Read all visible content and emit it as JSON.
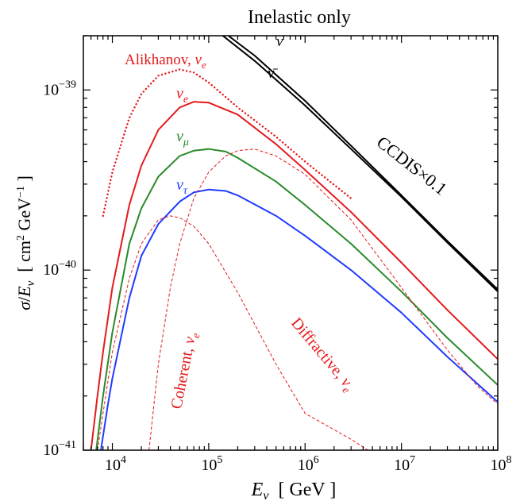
{
  "chart_data": {
    "type": "line",
    "title": "Inelastic only",
    "xlabel": "E_ν  [ GeV ]",
    "ylabel": "σ/E_ν  [ cm² GeV⁻¹ ]",
    "xscale": "log",
    "yscale": "log",
    "xlim": [
      5000,
      100000000
    ],
    "ylim": [
      1e-41,
      2e-39
    ],
    "x_ticks": [
      {
        "value": 10000,
        "base": "10",
        "exp": "4"
      },
      {
        "value": 100000,
        "base": "10",
        "exp": "5"
      },
      {
        "value": 1000000,
        "base": "10",
        "exp": "6"
      },
      {
        "value": 10000000,
        "base": "10",
        "exp": "7"
      },
      {
        "value": 100000000,
        "base": "10",
        "exp": "8"
      }
    ],
    "y_ticks": [
      {
        "value": 1e-41,
        "base": "10",
        "exp": "−41"
      },
      {
        "value": 1e-40,
        "base": "10",
        "exp": "−40"
      },
      {
        "value": 1e-39,
        "base": "10",
        "exp": "−39"
      }
    ],
    "grid": false,
    "series": [
      {
        "name": "CCDIS×0.1 (ν)",
        "color": "#000000",
        "dash": "solid",
        "x": [
          160000,
          300000,
          1000000,
          3000000,
          10000000,
          30000000,
          100000000
        ],
        "y": [
          2e-39,
          1.55e-39,
          8.7e-40,
          4.9e-40,
          2.6e-40,
          1.45e-40,
          7.8e-41
        ]
      },
      {
        "name": "CCDIS×0.1 (ν̄)",
        "color": "#000000",
        "dash": "solid",
        "x": [
          140000,
          300000,
          1000000,
          3000000,
          10000000,
          30000000,
          100000000
        ],
        "y": [
          2e-39,
          1.45e-39,
          8.2e-40,
          4.7e-40,
          2.55e-40,
          1.42e-40,
          7.6e-41
        ]
      },
      {
        "name": "Alikhanov, ν_e",
        "color": "#e41a1c",
        "dash": "dotted",
        "x": [
          8000,
          10000,
          15000,
          20000,
          30000,
          50000,
          70000,
          100000,
          200000,
          500000,
          1000000,
          3000000
        ],
        "y": [
          2e-40,
          3.5e-40,
          7e-40,
          9.5e-40,
          1.2e-39,
          1.3e-39,
          1.25e-39,
          1.1e-39,
          8e-40,
          5.5e-40,
          4e-40,
          2.5e-40
        ]
      },
      {
        "name": "ν_e",
        "color": "#e41a1c",
        "dash": "solid",
        "x": [
          6000,
          7000,
          8000,
          10000,
          15000,
          20000,
          30000,
          50000,
          70000,
          100000,
          200000,
          500000,
          1000000,
          3000000,
          10000000,
          30000000,
          100000000
        ],
        "y": [
          1e-41,
          2e-41,
          3.5e-41,
          8e-41,
          2.3e-40,
          3.8e-40,
          6e-40,
          8e-40,
          8.6e-40,
          8.5e-40,
          7.3e-40,
          5e-40,
          3.6e-40,
          2.1e-40,
          1.1e-40,
          6e-41,
          3.2e-41
        ]
      },
      {
        "name": "ν_μ",
        "color": "#2a8a2a",
        "dash": "solid",
        "x": [
          6800,
          8000,
          10000,
          15000,
          20000,
          30000,
          50000,
          70000,
          100000,
          150000,
          200000,
          500000,
          1000000,
          3000000,
          10000000,
          30000000,
          100000000
        ],
        "y": [
          1e-41,
          2e-41,
          4.5e-41,
          1.4e-40,
          2.2e-40,
          3.3e-40,
          4.3e-40,
          4.6e-40,
          4.7e-40,
          4.55e-40,
          4.2e-40,
          3.1e-40,
          2.3e-40,
          1.4e-40,
          7.6e-41,
          4.2e-41,
          2.3e-41
        ]
      },
      {
        "name": "ν_τ",
        "color": "#1f3cff",
        "dash": "solid",
        "x": [
          7600,
          9000,
          10000,
          15000,
          20000,
          30000,
          50000,
          70000,
          100000,
          150000,
          200000,
          500000,
          1000000,
          3000000,
          10000000,
          30000000,
          100000000
        ],
        "y": [
          1e-41,
          1.8e-41,
          2.5e-41,
          7e-41,
          1.2e-40,
          1.8e-40,
          2.4e-40,
          2.7e-40,
          2.8e-40,
          2.75e-40,
          2.6e-40,
          2e-40,
          1.55e-40,
          1e-40,
          5.8e-41,
          3.3e-41,
          1.85e-41
        ]
      },
      {
        "name": "Coherent, ν_e",
        "color": "#e41a1c",
        "dash": "dashed",
        "x": [
          7000,
          10000,
          15000,
          20000,
          30000,
          40000,
          50000,
          70000,
          100000,
          200000,
          500000,
          1000000,
          2000000,
          3000000,
          4500000
        ],
        "y": [
          1e-41,
          3.5e-41,
          9e-41,
          1.4e-40,
          1.9e-40,
          2e-40,
          1.95e-40,
          1.75e-40,
          1.4e-40,
          7.5e-41,
          3e-41,
          1.6e-41,
          1.3e-41,
          1.15e-41,
          1e-41
        ]
      },
      {
        "name": "Diffractive, ν_e",
        "color": "#e41a1c",
        "dash": "dashed",
        "x": [
          24000,
          30000,
          40000,
          50000,
          70000,
          100000,
          150000,
          200000,
          300000,
          500000,
          1000000,
          3000000,
          10000000,
          30000000,
          60000000,
          100000000
        ],
        "y": [
          1e-41,
          3e-41,
          8e-41,
          1.4e-40,
          2.5e-40,
          3.5e-40,
          4.3e-40,
          4.6e-40,
          4.7e-40,
          4.3e-40,
          3.4e-40,
          1.9e-40,
          8e-41,
          3.6e-41,
          2.3e-41,
          1.8e-41
        ]
      }
    ],
    "annotations": [
      {
        "key": "nu",
        "text": "ν",
        "color": "#000000"
      },
      {
        "key": "nubar",
        "text": "ν̄",
        "color": "#000000"
      },
      {
        "key": "ccdis",
        "text": "CCDIS×0.1",
        "color": "#000000"
      },
      {
        "key": "alikhanov",
        "text": "Alikhanov, ν",
        "sub": "e",
        "color": "#e41a1c"
      },
      {
        "key": "nue",
        "text": "ν",
        "sub": "e",
        "color": "#e41a1c"
      },
      {
        "key": "numu",
        "text": "ν",
        "sub": "μ",
        "color": "#2a8a2a"
      },
      {
        "key": "nutau",
        "text": "ν",
        "sub": "τ",
        "color": "#1f3cff"
      },
      {
        "key": "coherent",
        "text": "Coherent, ν",
        "sub": "e",
        "color": "#e41a1c"
      },
      {
        "key": "diffractive",
        "text": "Diffractive, ν",
        "sub": "e",
        "color": "#e41a1c"
      }
    ]
  }
}
